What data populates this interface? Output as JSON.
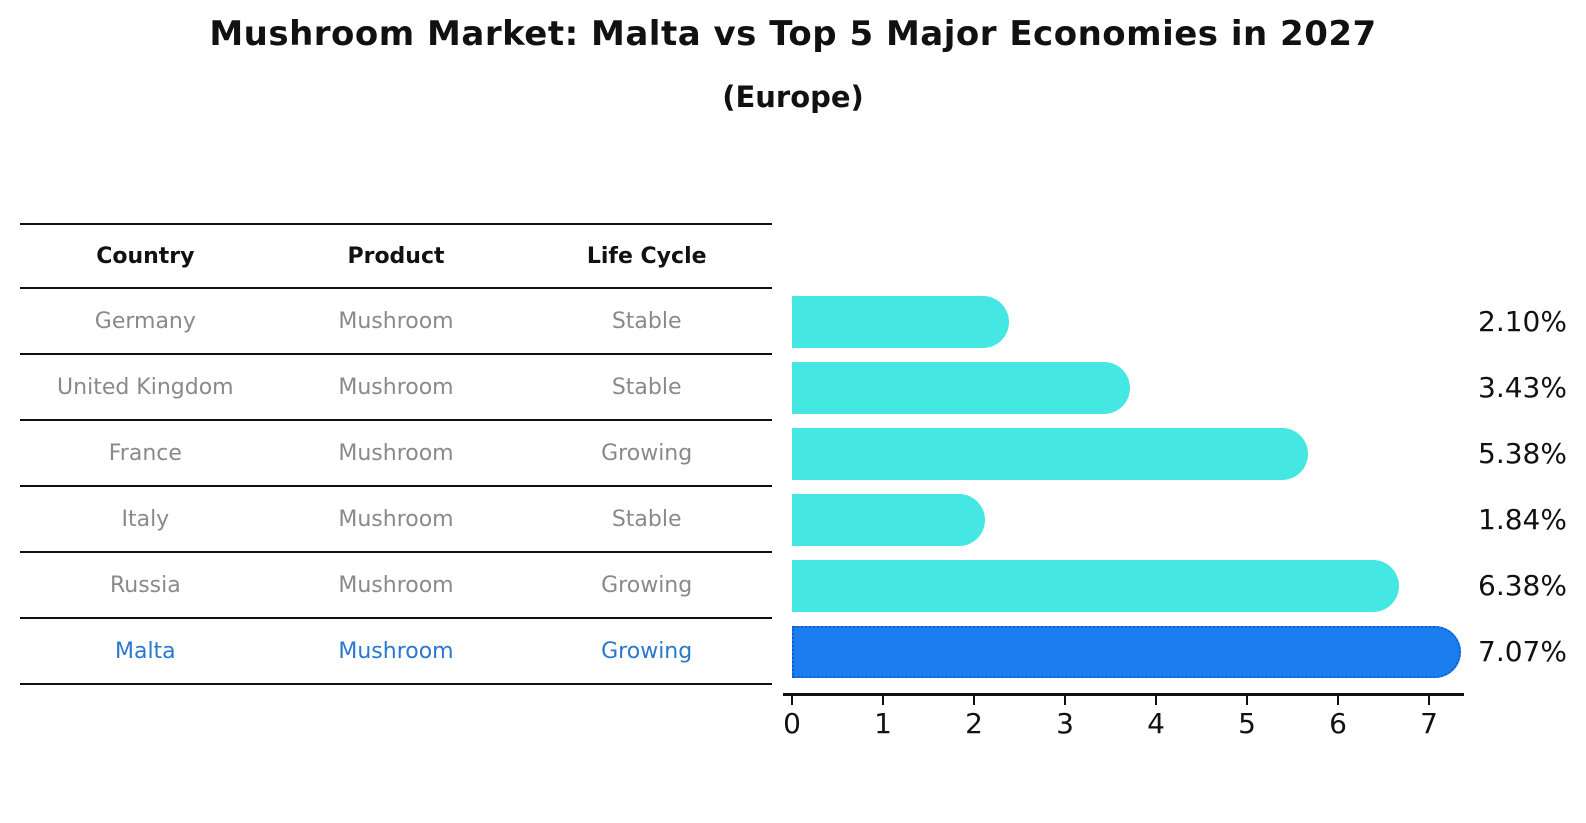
{
  "title": "Mushroom Market: Malta vs Top 5 Major Economies in 2027",
  "subtitle": "(Europe)",
  "table": {
    "headers": [
      "Country",
      "Product",
      "Life Cycle"
    ],
    "rows": [
      {
        "country": "Germany",
        "product": "Mushroom",
        "life_cycle": "Stable",
        "highlight": false
      },
      {
        "country": "United Kingdom",
        "product": "Mushroom",
        "life_cycle": "Stable",
        "highlight": false
      },
      {
        "country": "France",
        "product": "Mushroom",
        "life_cycle": "Growing",
        "highlight": false
      },
      {
        "country": "Italy",
        "product": "Mushroom",
        "life_cycle": "Stable",
        "highlight": false
      },
      {
        "country": "Russia",
        "product": "Mushroom",
        "life_cycle": "Growing",
        "highlight": false
      },
      {
        "country": "Malta",
        "product": "Mushroom",
        "life_cycle": "Growing",
        "highlight": true
      }
    ]
  },
  "chart_data": {
    "type": "bar",
    "orientation": "horizontal",
    "title": "Mushroom Market: Malta vs Top 5 Major Economies in 2027",
    "subtitle": "(Europe)",
    "categories": [
      "Germany",
      "United Kingdom",
      "France",
      "Italy",
      "Russia",
      "Malta"
    ],
    "values": [
      2.1,
      3.43,
      5.38,
      1.84,
      6.38,
      7.07
    ],
    "value_labels": [
      "2.10%",
      "3.43%",
      "5.38%",
      "1.84%",
      "6.38%",
      "7.07%"
    ],
    "highlight_index": 5,
    "xlabel": "",
    "ylabel": "",
    "xlim": [
      0,
      7.5
    ],
    "x_ticks": [
      0,
      1,
      2,
      3,
      4,
      5,
      6,
      7
    ],
    "grid": false,
    "legend": false
  },
  "colors": {
    "bar": "#44e7e2",
    "highlight_bar": "#1c7eee",
    "highlight_border": "#0d5fd6",
    "highlight_text": "#2878d0",
    "row_text": "#8a8a8a",
    "axis": "#111111"
  }
}
